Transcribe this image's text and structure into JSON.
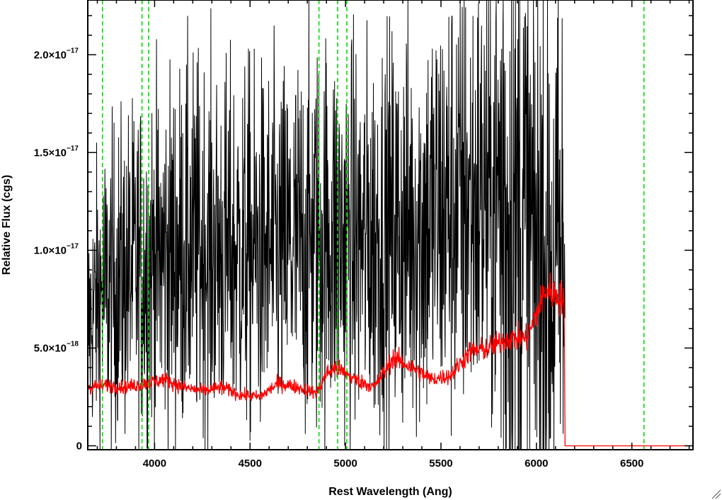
{
  "chart_data": {
    "type": "line",
    "title": "",
    "xlabel": "Rest Wavelength (Ang)",
    "ylabel": "Relative Flux (cgs)",
    "xlim": [
      3650,
      6820
    ],
    "ylim": [
      -2e-19,
      2.28e-17
    ],
    "x_ticks": [
      {
        "value": 4000,
        "label": "4000"
      },
      {
        "value": 4500,
        "label": "4500"
      },
      {
        "value": 5000,
        "label": "5000"
      },
      {
        "value": 5500,
        "label": "5500"
      },
      {
        "value": 6000,
        "label": "6000"
      },
      {
        "value": 6500,
        "label": "6500"
      }
    ],
    "y_ticks": [
      {
        "value": 0,
        "mantissa": "0",
        "exponent": ""
      },
      {
        "value": 5e-18,
        "mantissa": "5.0×10",
        "exponent": "−18"
      },
      {
        "value": 1e-17,
        "mantissa": "1.0×10",
        "exponent": "−17"
      },
      {
        "value": 1.5e-17,
        "mantissa": "1.5×10",
        "exponent": "−17"
      },
      {
        "value": 2e-17,
        "mantissa": "2.0×10",
        "exponent": "−17"
      }
    ],
    "x_minor_step": 100,
    "y_minor_step": 1e-18,
    "vertical_lines": [
      3727,
      3934,
      3969,
      4861,
      4959,
      5007,
      6563
    ],
    "series": [
      {
        "color": "#000000",
        "style": "noisy-spectrum",
        "x": [
          3650,
          3700,
          3750,
          3800,
          3900,
          4000,
          4100,
          4200,
          4300,
          4400,
          4500,
          4600,
          4700,
          4800,
          4900,
          5000,
          5100,
          5200,
          5300,
          5400,
          5500,
          5600,
          5700,
          5800,
          5900,
          6000,
          6100,
          6150
        ],
        "y": [
          6e-18,
          7.5e-18,
          8e-18,
          8.5e-18,
          9e-18,
          9.5e-18,
          9.8e-18,
          1.02e-17,
          1e-17,
          9.9e-18,
          1e-17,
          9.8e-18,
          1e-17,
          1.05e-17,
          1.08e-17,
          1.05e-17,
          1.05e-17,
          1.08e-17,
          1.1e-17,
          1.15e-17,
          1.2e-17,
          1.25e-17,
          1.25e-17,
          1.3e-17,
          1.1e-17,
          1e-17,
          9e-18,
          9e-18
        ]
      },
      {
        "color": "#ff0000",
        "style": "error-spectrum",
        "x": [
          3650,
          3750,
          3850,
          3950,
          4050,
          4150,
          4250,
          4350,
          4450,
          4550,
          4650,
          4750,
          4850,
          4900,
          4950,
          5050,
          5150,
          5250,
          5350,
          5450,
          5550,
          5650,
          5750,
          5850,
          5950,
          6050,
          6145,
          6150,
          6820
        ],
        "y": [
          3e-18,
          3.1e-18,
          3e-18,
          3.2e-18,
          3.4e-18,
          3e-18,
          2.8e-18,
          3e-18,
          2.6e-18,
          2.5e-18,
          3.2e-18,
          3e-18,
          2.7e-18,
          3.7e-18,
          4e-18,
          3.4e-18,
          3e-18,
          4.5e-18,
          4e-18,
          3.4e-18,
          3.6e-18,
          4.8e-18,
          5e-18,
          5.5e-18,
          5.5e-18,
          8e-18,
          7.5e-18,
          0,
          0
        ]
      }
    ]
  }
}
